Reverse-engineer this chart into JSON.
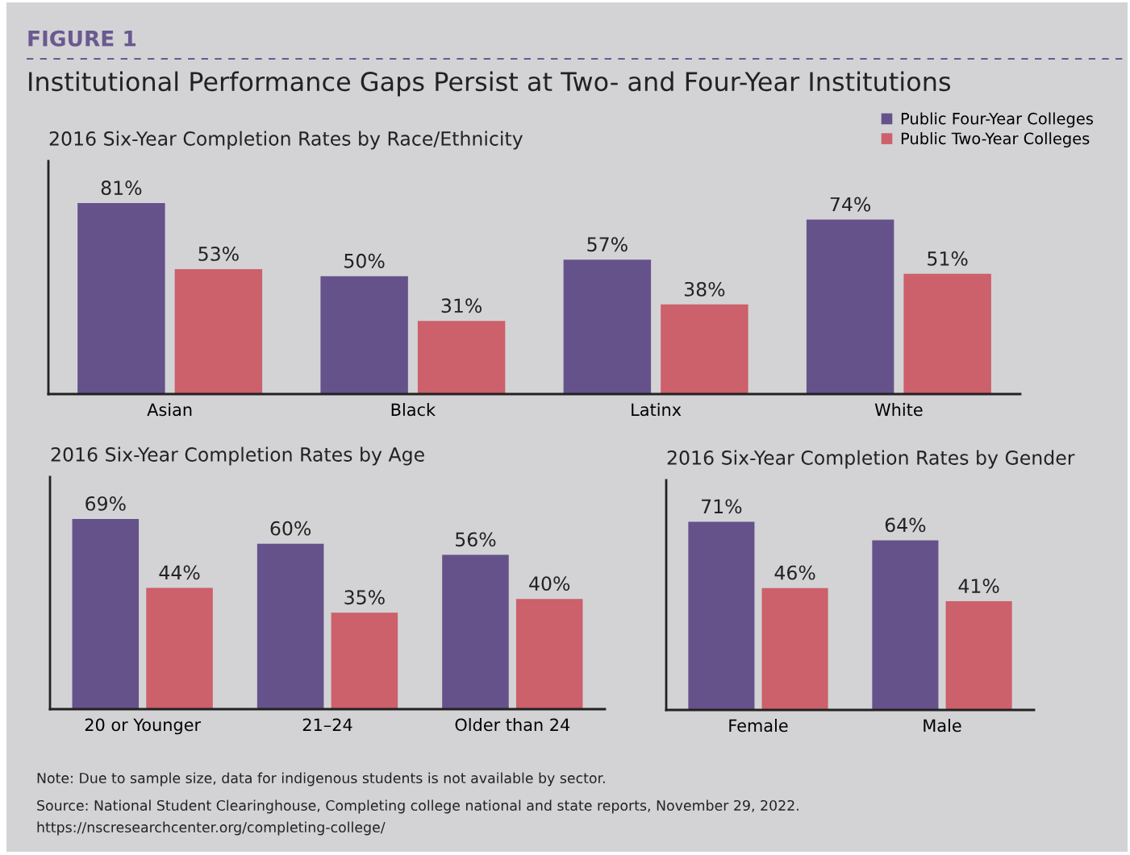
{
  "chart_data": [
    {
      "type": "bar",
      "title": "2016 Six-Year Completion Rates by Race/Ethnicity",
      "annotations": [
        "FIGURE 1",
        "Institutional Performance Gaps Persist at Two- and Four-Year Institutions"
      ],
      "categories": [
        "Asian",
        "Black",
        "Latinx",
        "White"
      ],
      "series": [
        {
          "name": "Public Four-Year Colleges",
          "color": "#65528a",
          "values": [
            81,
            50,
            57,
            74
          ],
          "value_labels": [
            "81%",
            "50%",
            "57%",
            "74%"
          ]
        },
        {
          "name": "Public Two-Year Colleges",
          "color": "#cc606b",
          "values": [
            53,
            31,
            38,
            51
          ],
          "value_labels": [
            "53%",
            "31%",
            "38%",
            "51%"
          ]
        }
      ],
      "legend": "top right",
      "tick_labels": "x"
    },
    {
      "type": "bar",
      "title": "2016 Six-Year Completion Rates by Age",
      "categories": [
        "20 or Younger",
        "21–24",
        "Older than 24"
      ],
      "series": [
        {
          "color": "#65528a",
          "values": [
            69,
            60,
            56
          ],
          "value_labels": [
            "69%",
            "60%",
            "56%"
          ]
        },
        {
          "color": "#cc606b",
          "values": [
            44,
            35,
            40
          ],
          "value_labels": [
            "44%",
            "35%",
            "40%"
          ]
        }
      ],
      "tick_labels": "x"
    },
    {
      "type": "bar",
      "title": "2016 Six-Year Completion Rates by Gender",
      "categories": [
        "Female",
        "Male"
      ],
      "series": [
        {
          "color": "#65528a",
          "values": [
            71,
            64
          ],
          "value_labels": [
            "71%",
            "64%"
          ]
        },
        {
          "color": "#cc606b",
          "values": [
            46,
            41
          ],
          "value_labels": [
            "46%",
            "41%"
          ]
        }
      ],
      "tick_labels": "x",
      "annotations": [
        "Note: Due to sample size, data for indigenous students is not available by sector.",
        "Source: National Student Clearinghouse, Completing college national and state reports, November 29, 2022.",
        "https://nscresearchcenter.org/completing-college/"
      ]
    }
  ]
}
